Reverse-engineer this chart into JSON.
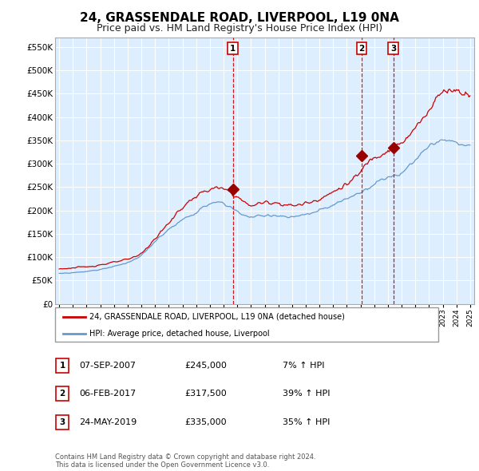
{
  "title": "24, GRASSENDALE ROAD, LIVERPOOL, L19 0NA",
  "subtitle": "Price paid vs. HM Land Registry's House Price Index (HPI)",
  "title_fontsize": 11,
  "subtitle_fontsize": 9,
  "ylabel_ticks": [
    "£0",
    "£50K",
    "£100K",
    "£150K",
    "£200K",
    "£250K",
    "£300K",
    "£350K",
    "£400K",
    "£450K",
    "£500K",
    "£550K"
  ],
  "ytick_values": [
    0,
    50000,
    100000,
    150000,
    200000,
    250000,
    300000,
    350000,
    400000,
    450000,
    500000,
    550000
  ],
  "ylim": [
    0,
    570000
  ],
  "xlim_start": 1994.7,
  "xlim_end": 2025.3,
  "xticks": [
    1995,
    1996,
    1997,
    1998,
    1999,
    2000,
    2001,
    2002,
    2003,
    2004,
    2005,
    2006,
    2007,
    2008,
    2009,
    2010,
    2011,
    2012,
    2013,
    2014,
    2015,
    2016,
    2017,
    2018,
    2019,
    2020,
    2021,
    2022,
    2023,
    2024,
    2025
  ],
  "red_line_color": "#cc0000",
  "blue_line_color": "#6699cc",
  "sale_marker_color": "#990000",
  "vline_color": "#cc0000",
  "chart_bg_color": "#ddeeff",
  "grid_color": "#ffffff",
  "legend_box_edge": "#999999",
  "transaction_box_color": "#cc0000",
  "transactions": [
    {
      "num": 1,
      "date": "07-SEP-2007",
      "price": "£245,000",
      "pct": "7% ↑ HPI",
      "x_year": 2007.68
    },
    {
      "num": 2,
      "date": "06-FEB-2017",
      "price": "£317,500",
      "pct": "39% ↑ HPI",
      "x_year": 2017.09
    },
    {
      "num": 3,
      "date": "24-MAY-2019",
      "price": "£335,000",
      "pct": "35% ↑ HPI",
      "x_year": 2019.39
    }
  ],
  "transaction_marker_values": [
    245000,
    317500,
    335000
  ],
  "legend_label_red": "24, GRASSENDALE ROAD, LIVERPOOL, L19 0NA (detached house)",
  "legend_label_blue": "HPI: Average price, detached house, Liverpool",
  "footer": "Contains HM Land Registry data © Crown copyright and database right 2024.\nThis data is licensed under the Open Government Licence v3.0."
}
